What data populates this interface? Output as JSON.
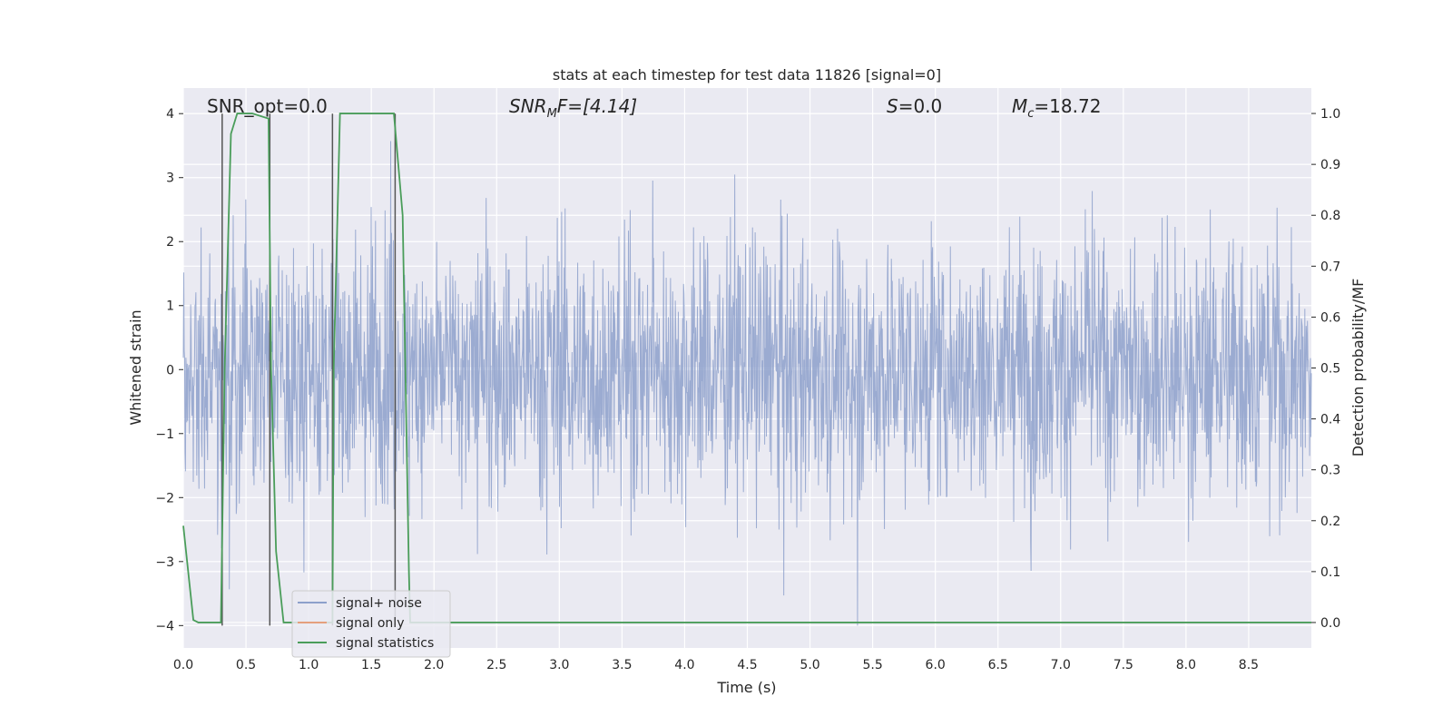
{
  "chart_data": {
    "type": "line",
    "title": "stats at each timestep for test data 11826 [signal=0]",
    "xlabel": "Time (s)",
    "ylabel": "Whitened strain",
    "ylabel_right": "Detection probability/MF",
    "xlim": [
      0.0,
      9.0
    ],
    "ylim": [
      -4.35,
      4.4
    ],
    "ylim_right": [
      -0.05,
      1.05
    ],
    "x_ticks": [
      "0.0",
      "0.5",
      "1.0",
      "1.5",
      "2.0",
      "2.5",
      "3.0",
      "3.5",
      "4.0",
      "4.5",
      "5.0",
      "5.5",
      "6.0",
      "6.5",
      "7.0",
      "7.5",
      "8.0",
      "8.5"
    ],
    "y_ticks": [
      "4",
      "3",
      "2",
      "1",
      "0",
      "−1",
      "−2",
      "−3",
      "−4"
    ],
    "y_ticks_right": [
      "1.0",
      "0.9",
      "0.8",
      "0.7",
      "0.6",
      "0.5",
      "0.4",
      "0.3",
      "0.2",
      "0.1",
      "0.0"
    ],
    "grid": true,
    "legend_position": "lower-left",
    "annotations": {
      "snr_opt": "SNR_opt=0.0",
      "snr_mf_main": "SNR",
      "snr_mf_sub": "M",
      "snr_mf_rest": "F=[4.14]",
      "s_main": "S",
      "s_rest": "=0.0",
      "mc_main": "M",
      "mc_sub": "c",
      "mc_rest": "=18.72"
    },
    "series": [
      {
        "name": "signal+ noise",
        "color": "#8da0cb",
        "description": "whitened strain noise, approximately uniform amplitude about zero",
        "x_range": [
          0.0,
          9.0
        ],
        "amplitude_envelope": [
          -4.0,
          4.0
        ]
      },
      {
        "name": "signal only",
        "color": "#e5a07d",
        "values": []
      },
      {
        "name": "signal statistics",
        "color": "#4a9d5a",
        "x": [
          0.0,
          0.08,
          0.12,
          0.3,
          0.33,
          0.38,
          0.43,
          0.55,
          0.68,
          0.7,
          0.74,
          0.8,
          1.19,
          1.2,
          1.25,
          1.3,
          1.65,
          1.68,
          1.75,
          1.8,
          1.81,
          9.0
        ],
        "y": [
          0.19,
          0.005,
          0.0,
          0.0,
          0.5,
          0.96,
          1.0,
          1.0,
          0.99,
          0.5,
          0.14,
          0.0,
          0.0,
          0.5,
          1.0,
          1.0,
          1.0,
          1.0,
          0.8,
          0.1,
          0.0,
          0.0
        ]
      }
    ],
    "vertical_lines": [
      {
        "x": 0.31,
        "y_from": -4.0,
        "y_to": 4.0
      },
      {
        "x": 0.69,
        "y_from": -4.0,
        "y_to": 4.0
      },
      {
        "x": 1.19,
        "y_from": -4.0,
        "y_to": 4.0
      },
      {
        "x": 1.69,
        "y_from": -4.0,
        "y_to": 4.0
      }
    ],
    "colors": {
      "axes_background": "#eaeaf2",
      "grid": "#ffffff",
      "vline": "#555555"
    }
  }
}
